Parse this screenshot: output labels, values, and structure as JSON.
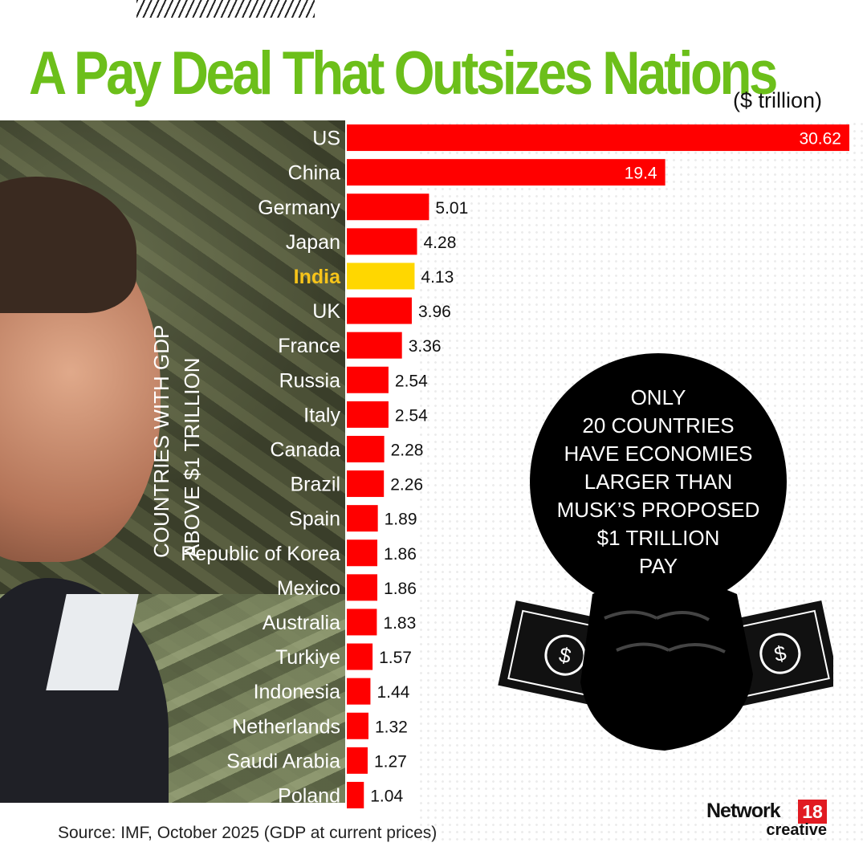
{
  "title": "A Pay Deal That Outsizes Nations",
  "unit_label": "($ trillion)",
  "side_label": {
    "line1": "COUNTRIES WITH GDP",
    "line2": "ABOVE $1 TRILLION"
  },
  "callout": {
    "lines": [
      "ONLY",
      "20 COUNTRIES",
      "HAVE ECONOMIES",
      "LARGER THAN",
      "MUSK’S PROPOSED",
      "$1 TRILLION",
      "PAY"
    ]
  },
  "source": "Source: IMF, October 2025 (GDP at current prices)",
  "brand": {
    "name": "Network",
    "number": "18",
    "sub": "creative"
  },
  "colors": {
    "bar": "#ff0000",
    "highlight": "#ffd700",
    "title": "#6cbf1a"
  },
  "chart_data": {
    "type": "bar",
    "orientation": "horizontal",
    "categories": [
      "US",
      "China",
      "Germany",
      "Japan",
      "India",
      "UK",
      "France",
      "Russia",
      "Italy",
      "Canada",
      "Brazil",
      "Spain",
      "Republic of Korea",
      "Mexico",
      "Australia",
      "Turkiye",
      "Indonesia",
      "Netherlands",
      "Saudi Arabia",
      "Poland"
    ],
    "values": [
      30.62,
      19.4,
      5.01,
      4.28,
      4.13,
      3.96,
      3.36,
      2.54,
      2.54,
      2.28,
      2.26,
      1.89,
      1.86,
      1.86,
      1.83,
      1.57,
      1.44,
      1.32,
      1.27,
      1.04
    ],
    "labels": [
      "30.62",
      "19.4",
      "5.01",
      "4.28",
      "4.13",
      "3.96",
      "3.36",
      "2.54",
      "2.54",
      "2.28",
      "2.26",
      "1.89",
      "1.86",
      "1.86",
      "1.83",
      "1.57",
      "1.44",
      "1.32",
      "1.27",
      "1.04"
    ],
    "highlight": "India",
    "title": "A Pay Deal That Outsizes Nations",
    "xlabel": "($ trillion)",
    "ylabel": "COUNTRIES WITH GDP ABOVE $1 TRILLION"
  }
}
